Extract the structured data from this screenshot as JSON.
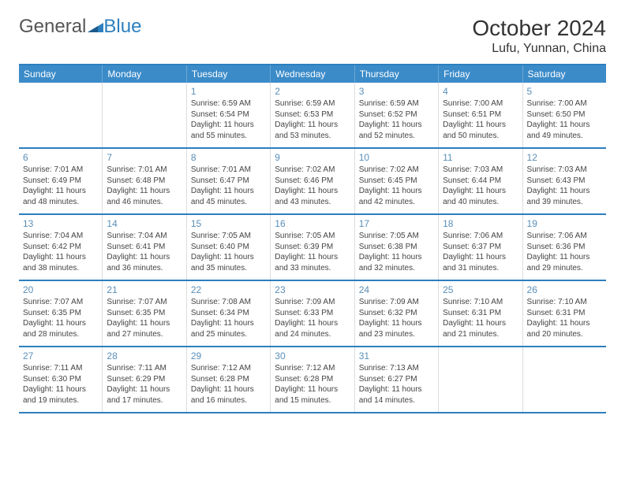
{
  "brand": {
    "part1": "General",
    "part2": "Blue"
  },
  "title": "October 2024",
  "location": "Lufu, Yunnan, China",
  "colors": {
    "header_bg": "#3b8bc9",
    "header_border": "#2d7fbf",
    "day_num": "#5a8fb8",
    "text": "#444444",
    "bg": "#ffffff"
  },
  "weekdays": [
    "Sunday",
    "Monday",
    "Tuesday",
    "Wednesday",
    "Thursday",
    "Friday",
    "Saturday"
  ],
  "weeks": [
    [
      null,
      null,
      {
        "n": "1",
        "sr": "Sunrise: 6:59 AM",
        "ss": "Sunset: 6:54 PM",
        "dl": "Daylight: 11 hours and 55 minutes."
      },
      {
        "n": "2",
        "sr": "Sunrise: 6:59 AM",
        "ss": "Sunset: 6:53 PM",
        "dl": "Daylight: 11 hours and 53 minutes."
      },
      {
        "n": "3",
        "sr": "Sunrise: 6:59 AM",
        "ss": "Sunset: 6:52 PM",
        "dl": "Daylight: 11 hours and 52 minutes."
      },
      {
        "n": "4",
        "sr": "Sunrise: 7:00 AM",
        "ss": "Sunset: 6:51 PM",
        "dl": "Daylight: 11 hours and 50 minutes."
      },
      {
        "n": "5",
        "sr": "Sunrise: 7:00 AM",
        "ss": "Sunset: 6:50 PM",
        "dl": "Daylight: 11 hours and 49 minutes."
      }
    ],
    [
      {
        "n": "6",
        "sr": "Sunrise: 7:01 AM",
        "ss": "Sunset: 6:49 PM",
        "dl": "Daylight: 11 hours and 48 minutes."
      },
      {
        "n": "7",
        "sr": "Sunrise: 7:01 AM",
        "ss": "Sunset: 6:48 PM",
        "dl": "Daylight: 11 hours and 46 minutes."
      },
      {
        "n": "8",
        "sr": "Sunrise: 7:01 AM",
        "ss": "Sunset: 6:47 PM",
        "dl": "Daylight: 11 hours and 45 minutes."
      },
      {
        "n": "9",
        "sr": "Sunrise: 7:02 AM",
        "ss": "Sunset: 6:46 PM",
        "dl": "Daylight: 11 hours and 43 minutes."
      },
      {
        "n": "10",
        "sr": "Sunrise: 7:02 AM",
        "ss": "Sunset: 6:45 PM",
        "dl": "Daylight: 11 hours and 42 minutes."
      },
      {
        "n": "11",
        "sr": "Sunrise: 7:03 AM",
        "ss": "Sunset: 6:44 PM",
        "dl": "Daylight: 11 hours and 40 minutes."
      },
      {
        "n": "12",
        "sr": "Sunrise: 7:03 AM",
        "ss": "Sunset: 6:43 PM",
        "dl": "Daylight: 11 hours and 39 minutes."
      }
    ],
    [
      {
        "n": "13",
        "sr": "Sunrise: 7:04 AM",
        "ss": "Sunset: 6:42 PM",
        "dl": "Daylight: 11 hours and 38 minutes."
      },
      {
        "n": "14",
        "sr": "Sunrise: 7:04 AM",
        "ss": "Sunset: 6:41 PM",
        "dl": "Daylight: 11 hours and 36 minutes."
      },
      {
        "n": "15",
        "sr": "Sunrise: 7:05 AM",
        "ss": "Sunset: 6:40 PM",
        "dl": "Daylight: 11 hours and 35 minutes."
      },
      {
        "n": "16",
        "sr": "Sunrise: 7:05 AM",
        "ss": "Sunset: 6:39 PM",
        "dl": "Daylight: 11 hours and 33 minutes."
      },
      {
        "n": "17",
        "sr": "Sunrise: 7:05 AM",
        "ss": "Sunset: 6:38 PM",
        "dl": "Daylight: 11 hours and 32 minutes."
      },
      {
        "n": "18",
        "sr": "Sunrise: 7:06 AM",
        "ss": "Sunset: 6:37 PM",
        "dl": "Daylight: 11 hours and 31 minutes."
      },
      {
        "n": "19",
        "sr": "Sunrise: 7:06 AM",
        "ss": "Sunset: 6:36 PM",
        "dl": "Daylight: 11 hours and 29 minutes."
      }
    ],
    [
      {
        "n": "20",
        "sr": "Sunrise: 7:07 AM",
        "ss": "Sunset: 6:35 PM",
        "dl": "Daylight: 11 hours and 28 minutes."
      },
      {
        "n": "21",
        "sr": "Sunrise: 7:07 AM",
        "ss": "Sunset: 6:35 PM",
        "dl": "Daylight: 11 hours and 27 minutes."
      },
      {
        "n": "22",
        "sr": "Sunrise: 7:08 AM",
        "ss": "Sunset: 6:34 PM",
        "dl": "Daylight: 11 hours and 25 minutes."
      },
      {
        "n": "23",
        "sr": "Sunrise: 7:09 AM",
        "ss": "Sunset: 6:33 PM",
        "dl": "Daylight: 11 hours and 24 minutes."
      },
      {
        "n": "24",
        "sr": "Sunrise: 7:09 AM",
        "ss": "Sunset: 6:32 PM",
        "dl": "Daylight: 11 hours and 23 minutes."
      },
      {
        "n": "25",
        "sr": "Sunrise: 7:10 AM",
        "ss": "Sunset: 6:31 PM",
        "dl": "Daylight: 11 hours and 21 minutes."
      },
      {
        "n": "26",
        "sr": "Sunrise: 7:10 AM",
        "ss": "Sunset: 6:31 PM",
        "dl": "Daylight: 11 hours and 20 minutes."
      }
    ],
    [
      {
        "n": "27",
        "sr": "Sunrise: 7:11 AM",
        "ss": "Sunset: 6:30 PM",
        "dl": "Daylight: 11 hours and 19 minutes."
      },
      {
        "n": "28",
        "sr": "Sunrise: 7:11 AM",
        "ss": "Sunset: 6:29 PM",
        "dl": "Daylight: 11 hours and 17 minutes."
      },
      {
        "n": "29",
        "sr": "Sunrise: 7:12 AM",
        "ss": "Sunset: 6:28 PM",
        "dl": "Daylight: 11 hours and 16 minutes."
      },
      {
        "n": "30",
        "sr": "Sunrise: 7:12 AM",
        "ss": "Sunset: 6:28 PM",
        "dl": "Daylight: 11 hours and 15 minutes."
      },
      {
        "n": "31",
        "sr": "Sunrise: 7:13 AM",
        "ss": "Sunset: 6:27 PM",
        "dl": "Daylight: 11 hours and 14 minutes."
      },
      null,
      null
    ]
  ]
}
